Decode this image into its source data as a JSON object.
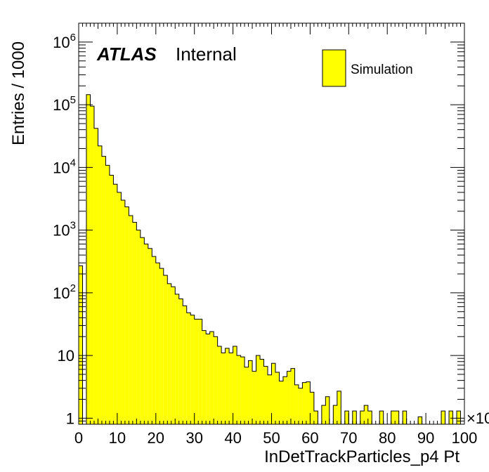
{
  "chart_data": {
    "type": "bar",
    "title": "",
    "xlabel": "InDetTrackParticles_p4 Pt",
    "ylabel": "Entries / 1000",
    "x_multiplier_label": "×10",
    "xlim": [
      0,
      100
    ],
    "ylim": [
      0.8,
      2000000
    ],
    "log_y": true,
    "bin_width": 1,
    "bin_edges_start": 0,
    "x_ticks": [
      "0",
      "10",
      "20",
      "30",
      "40",
      "50",
      "60",
      "70",
      "80",
      "90",
      "100"
    ],
    "y_ticks": [
      {
        "value": 1,
        "base": "1",
        "exp": ""
      },
      {
        "value": 10,
        "base": "10",
        "exp": ""
      },
      {
        "value": 100,
        "base": "10",
        "exp": "2"
      },
      {
        "value": 1000,
        "base": "10",
        "exp": "3"
      },
      {
        "value": 10000,
        "base": "10",
        "exp": "4"
      },
      {
        "value": 100000,
        "base": "10",
        "exp": "5"
      },
      {
        "value": 1000000,
        "base": "10",
        "exp": "6"
      }
    ],
    "fill_color": "#ffff00",
    "grid": false,
    "legend_position": "top-right",
    "series": [
      {
        "name": "Simulation",
        "values": [
          270,
          0.5,
          145000,
          95000,
          42000,
          22000,
          15000,
          10800,
          7500,
          5400,
          4000,
          3000,
          2350,
          1700,
          1330,
          1000,
          760,
          600,
          510,
          380,
          300,
          245,
          190,
          140,
          125,
          95,
          80,
          62,
          48,
          44,
          38,
          38,
          25,
          22,
          24,
          20,
          14,
          11,
          13,
          11,
          14,
          10,
          9.5,
          6.5,
          8.3,
          5.6,
          10,
          8.7,
          6.7,
          4.9,
          7.5,
          5.4,
          3.9,
          4.6,
          5.6,
          6.2,
          3.4,
          3.0,
          3.7,
          3.8,
          2.6,
          1.3,
          0.5,
          1.6,
          2.2,
          0.5,
          1.6,
          2.7,
          0.5,
          1.3,
          0.5,
          1.3,
          0.5,
          1.3,
          1.6,
          1.3,
          0.5,
          0.5,
          1.3,
          0.5,
          0.5,
          1.3,
          1.3,
          0.5,
          1.3,
          0.5,
          0.5,
          0.5,
          1.05,
          0.5,
          0.5,
          0.5,
          0.5,
          0.5,
          1.3,
          0.5,
          1.3,
          0.5,
          1.3,
          0.5
        ]
      }
    ],
    "labels": {
      "atlas": "ATLAS",
      "internal": "Internal"
    }
  }
}
